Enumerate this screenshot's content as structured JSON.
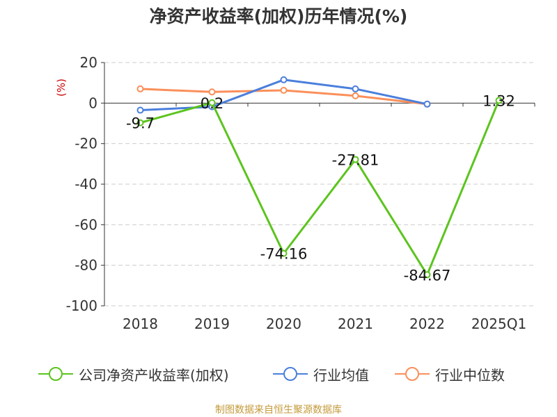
{
  "chart_data": {
    "type": "line",
    "title": "净资产收益率(加权)历年情况(%)",
    "ylabel": "(%)",
    "xlabel": "",
    "categories": [
      "2018",
      "2019",
      "2020",
      "2021",
      "2022",
      "2025Q1"
    ],
    "ylim": [
      -100,
      20
    ],
    "yticks": [
      20,
      0,
      -20,
      -40,
      -60,
      -80,
      -100
    ],
    "grid": "dashed horizontal",
    "legend_position": "bottom",
    "series": [
      {
        "name": "公司净资产收益率(加权)",
        "color": "#5bc41e",
        "values": [
          -9.7,
          0.2,
          -74.16,
          -27.81,
          -84.67,
          1.32
        ],
        "labels": [
          "-9.7",
          "0.2",
          "-74.16",
          "-27.81",
          "-84.67",
          "1.32"
        ]
      },
      {
        "name": "行业均值",
        "color": "#4a7fdc",
        "values": [
          -3.5,
          -1.8,
          11.5,
          7.0,
          -0.5,
          null
        ]
      },
      {
        "name": "行业中位数",
        "color": "#fb8f5a",
        "values": [
          7.0,
          5.5,
          6.3,
          3.6,
          -0.5,
          null
        ]
      }
    ]
  },
  "footer": {
    "source": "制图数据来自恒生聚源数据库"
  }
}
